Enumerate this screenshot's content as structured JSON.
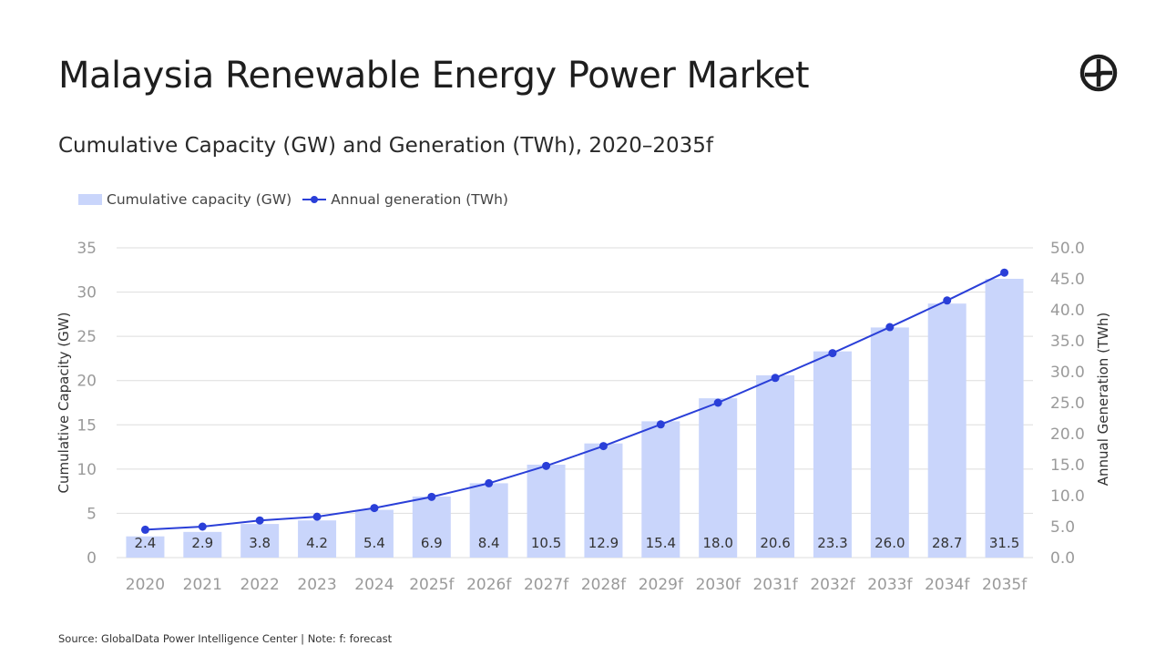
{
  "header": {
    "title": "Malaysia Renewable Energy Power Market",
    "subtitle": "Cumulative Capacity (GW) and Generation (TWh), 2020–2035f"
  },
  "logo": {
    "icon": "globaldata-logo-icon"
  },
  "footer": {
    "source": "Source: GlobalData Power Intelligence Center | Note: f: forecast"
  },
  "chart_data": {
    "type": "bar",
    "categories": [
      "2020",
      "2021",
      "2022",
      "2023",
      "2024",
      "2025f",
      "2026f",
      "2027f",
      "2028f",
      "2029f",
      "2030f",
      "2031f",
      "2032f",
      "2033f",
      "2034f",
      "2035f"
    ],
    "series": [
      {
        "name": "Cumulative capacity (GW)",
        "type": "bar",
        "axis": "left",
        "values": [
          2.4,
          2.9,
          3.8,
          4.2,
          5.4,
          6.9,
          8.4,
          10.5,
          12.9,
          15.4,
          18.0,
          20.6,
          23.3,
          26.0,
          28.7,
          31.5
        ],
        "data_labels": [
          "2.4",
          "2.9",
          "3.8",
          "4.2",
          "5.4",
          "6.9",
          "8.4",
          "10.5",
          "12.9",
          "15.4",
          "18.0",
          "20.6",
          "23.3",
          "26.0",
          "28.7",
          "31.5"
        ],
        "color": "#c9d5fb"
      },
      {
        "name": "Annual generation (TWh)",
        "type": "line",
        "axis": "right",
        "values": [
          4.5,
          5.0,
          6.0,
          6.6,
          8.0,
          9.8,
          12.0,
          14.8,
          18.0,
          21.5,
          25.0,
          29.0,
          33.0,
          37.2,
          41.5,
          46.0
        ],
        "color": "#2a3fd8"
      }
    ],
    "y_left": {
      "label": "Cumulative Capacity (GW)",
      "range": [
        0,
        35
      ],
      "ticks": [
        0,
        5,
        10,
        15,
        20,
        25,
        30,
        35
      ],
      "tick_labels": [
        "0",
        "5",
        "10",
        "15",
        "20",
        "25",
        "30",
        "35"
      ]
    },
    "y_right": {
      "label": "Annual Generation (TWh)",
      "range": [
        0,
        50
      ],
      "ticks": [
        0,
        5,
        10,
        15,
        20,
        25,
        30,
        35,
        40,
        45,
        50
      ],
      "tick_labels": [
        "0.0",
        "5.0",
        "10.0",
        "15.0",
        "20.0",
        "25.0",
        "30.0",
        "35.0",
        "40.0",
        "45.0",
        "50.0"
      ]
    },
    "grid": true,
    "legend": "top-left"
  }
}
